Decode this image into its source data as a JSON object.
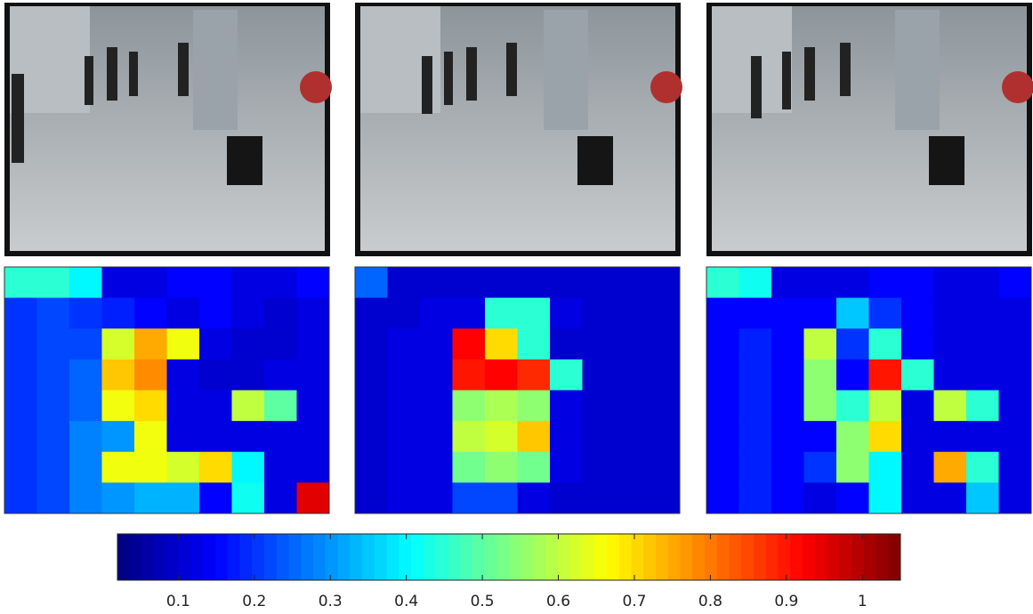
{
  "chart_data": [
    {
      "type": "heatmap",
      "values": [
        [
          0.45,
          0.45,
          0.4,
          0.12,
          0.12,
          0.15,
          0.15,
          0.12,
          0.12,
          0.15
        ],
        [
          0.2,
          0.22,
          0.2,
          0.18,
          0.15,
          0.12,
          0.15,
          0.12,
          0.1,
          0.12
        ],
        [
          0.2,
          0.22,
          0.22,
          0.62,
          0.75,
          0.65,
          0.12,
          0.1,
          0.1,
          0.12
        ],
        [
          0.2,
          0.22,
          0.25,
          0.72,
          0.78,
          0.12,
          0.1,
          0.1,
          0.12,
          0.12
        ],
        [
          0.2,
          0.22,
          0.25,
          0.65,
          0.7,
          0.12,
          0.12,
          0.6,
          0.5,
          0.12
        ],
        [
          0.2,
          0.22,
          0.28,
          0.3,
          0.65,
          0.12,
          0.12,
          0.12,
          0.12,
          0.12
        ],
        [
          0.2,
          0.22,
          0.28,
          0.65,
          0.65,
          0.62,
          0.7,
          0.4,
          0.12,
          0.12
        ],
        [
          0.2,
          0.22,
          0.28,
          0.3,
          0.33,
          0.33,
          0.15,
          0.42,
          0.12,
          0.95
        ]
      ]
    },
    {
      "type": "heatmap",
      "values": [
        [
          0.25,
          0.1,
          0.1,
          0.1,
          0.1,
          0.1,
          0.1,
          0.1,
          0.1,
          0.1
        ],
        [
          0.1,
          0.1,
          0.12,
          0.12,
          0.45,
          0.45,
          0.12,
          0.1,
          0.1,
          0.1
        ],
        [
          0.1,
          0.12,
          0.12,
          0.92,
          0.7,
          0.45,
          0.1,
          0.1,
          0.1,
          0.1
        ],
        [
          0.1,
          0.12,
          0.12,
          0.9,
          0.92,
          0.88,
          0.45,
          0.1,
          0.1,
          0.1
        ],
        [
          0.1,
          0.12,
          0.12,
          0.55,
          0.58,
          0.55,
          0.12,
          0.1,
          0.1,
          0.1
        ],
        [
          0.1,
          0.12,
          0.12,
          0.6,
          0.62,
          0.72,
          0.12,
          0.1,
          0.1,
          0.1
        ],
        [
          0.1,
          0.12,
          0.12,
          0.52,
          0.55,
          0.52,
          0.12,
          0.1,
          0.1,
          0.1
        ],
        [
          0.1,
          0.12,
          0.12,
          0.22,
          0.22,
          0.12,
          0.1,
          0.1,
          0.1,
          0.1
        ]
      ]
    },
    {
      "type": "heatmap",
      "values": [
        [
          0.45,
          0.42,
          0.12,
          0.12,
          0.12,
          0.15,
          0.15,
          0.12,
          0.12,
          0.15
        ],
        [
          0.15,
          0.15,
          0.15,
          0.15,
          0.35,
          0.2,
          0.15,
          0.12,
          0.12,
          0.12
        ],
        [
          0.15,
          0.18,
          0.15,
          0.6,
          0.2,
          0.45,
          0.15,
          0.12,
          0.12,
          0.12
        ],
        [
          0.15,
          0.18,
          0.15,
          0.55,
          0.15,
          0.9,
          0.45,
          0.12,
          0.12,
          0.12
        ],
        [
          0.15,
          0.18,
          0.15,
          0.55,
          0.45,
          0.6,
          0.12,
          0.6,
          0.45,
          0.12
        ],
        [
          0.15,
          0.18,
          0.15,
          0.15,
          0.55,
          0.7,
          0.12,
          0.12,
          0.12,
          0.12
        ],
        [
          0.15,
          0.18,
          0.15,
          0.2,
          0.55,
          0.4,
          0.12,
          0.75,
          0.45,
          0.12
        ],
        [
          0.15,
          0.18,
          0.15,
          0.12,
          0.15,
          0.4,
          0.12,
          0.12,
          0.35,
          0.12
        ]
      ]
    },
    {
      "type": "colorbar",
      "xlim": [
        0.02,
        1.05
      ],
      "xticks": [
        0.1,
        0.2,
        0.3,
        0.4,
        0.5,
        0.6,
        0.7,
        0.8,
        0.9,
        1
      ]
    }
  ]
}
